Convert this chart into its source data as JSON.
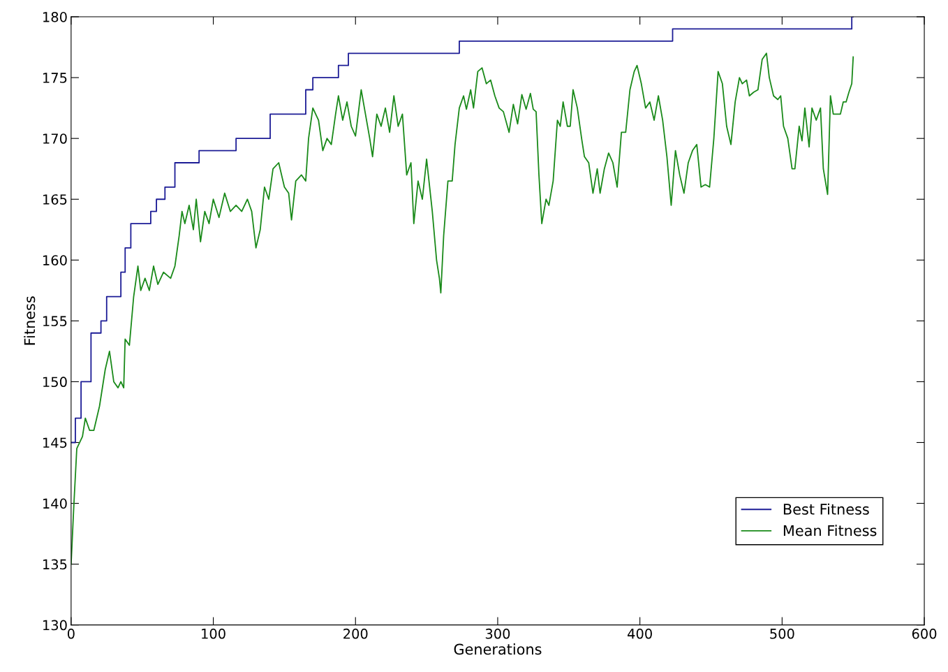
{
  "chart_data": {
    "type": "line",
    "xlabel": "Generations",
    "ylabel": "Fitness",
    "xlim": [
      0,
      600
    ],
    "xticks": [
      0,
      100,
      200,
      300,
      400,
      500,
      600
    ],
    "ylim": [
      130,
      180
    ],
    "yticks": [
      130,
      135,
      140,
      145,
      150,
      155,
      160,
      165,
      170,
      175,
      180
    ],
    "grid": false,
    "legend": "bottom right",
    "line_style": "solid",
    "marker": "none",
    "series": [
      {
        "name": "Best Fitness",
        "type": "step",
        "color": "#1c1c96",
        "x": [
          0,
          3,
          7,
          14,
          21,
          25,
          35,
          38,
          42,
          56,
          60,
          66,
          73,
          90,
          116,
          140,
          165,
          170,
          188,
          195,
          273,
          423,
          549,
          550
        ],
        "values": [
          145,
          147,
          150,
          154,
          155,
          157,
          159,
          161,
          163,
          164,
          165,
          166,
          168,
          169,
          170,
          172,
          174,
          175,
          176,
          177,
          178,
          179,
          180,
          180
        ]
      },
      {
        "name": "Mean Fitness",
        "color": "#1a8a1a",
        "x": [
          0,
          2,
          4,
          8,
          10,
          13,
          16,
          20,
          24,
          27,
          30,
          33,
          35,
          37,
          38,
          41,
          44,
          47,
          49,
          52,
          55,
          58,
          61,
          65,
          70,
          73,
          76,
          78,
          80,
          83,
          86,
          88,
          91,
          94,
          97,
          100,
          104,
          108,
          112,
          116,
          120,
          124,
          127,
          130,
          133,
          136,
          139,
          142,
          146,
          150,
          153,
          155,
          158,
          162,
          165,
          167,
          170,
          174,
          177,
          180,
          183,
          186,
          188,
          191,
          194,
          197,
          200,
          204,
          207,
          210,
          212,
          215,
          218,
          221,
          224,
          227,
          230,
          233,
          236,
          239,
          241,
          244,
          247,
          250,
          254,
          257,
          259,
          260,
          262,
          265,
          268,
          270,
          273,
          276,
          278,
          281,
          283,
          286,
          289,
          292,
          295,
          298,
          301,
          304,
          308,
          311,
          314,
          317,
          320,
          323,
          325,
          327,
          329,
          331,
          334,
          336,
          339,
          342,
          344,
          346,
          349,
          351,
          353,
          356,
          359,
          361,
          364,
          367,
          370,
          372,
          375,
          378,
          381,
          384,
          387,
          390,
          393,
          396,
          398,
          401,
          404,
          407,
          410,
          413,
          416,
          419,
          422,
          425,
          428,
          431,
          434,
          437,
          440,
          443,
          446,
          449,
          452,
          455,
          458,
          461,
          464,
          467,
          470,
          472,
          475,
          477,
          480,
          483,
          486,
          489,
          491,
          494,
          497,
          499,
          501,
          504,
          507,
          509,
          512,
          514,
          516,
          519,
          521,
          524,
          527,
          529,
          532,
          534,
          536,
          538,
          541,
          543,
          545,
          547,
          549,
          550
        ],
        "values": [
          135,
          140,
          144.5,
          145.5,
          147,
          146,
          146,
          148,
          151,
          152.5,
          150,
          149.5,
          150,
          149.5,
          153.5,
          153,
          157,
          159.5,
          157.5,
          158.5,
          157.5,
          159.5,
          158,
          159,
          158.5,
          159.5,
          162,
          164,
          163,
          164.5,
          162.5,
          165,
          161.5,
          164,
          163,
          165,
          163.5,
          165.5,
          164,
          164.5,
          164,
          165,
          164,
          161,
          162.5,
          166,
          165,
          167.5,
          168,
          166,
          165.5,
          163.3,
          166.5,
          167,
          166.5,
          170,
          172.5,
          171.5,
          169,
          170,
          169.5,
          172,
          173.5,
          171.5,
          173,
          171,
          170.2,
          174,
          172,
          170,
          168.5,
          172,
          171,
          172.5,
          170.5,
          173.5,
          171,
          172,
          167,
          168,
          163,
          166.5,
          165,
          168.3,
          164,
          160,
          158.5,
          157.3,
          162,
          166.5,
          166.5,
          169.5,
          172.5,
          173.5,
          172.4,
          174,
          172.5,
          175.5,
          175.8,
          174.5,
          174.8,
          173.5,
          172.5,
          172.2,
          170.5,
          172.8,
          171.2,
          173.6,
          172.4,
          173.7,
          172.4,
          172.2,
          167,
          163,
          165,
          164.5,
          166.5,
          171.5,
          171,
          173,
          171,
          171,
          174,
          172.5,
          170,
          168.5,
          168,
          165.5,
          167.5,
          165.5,
          167.5,
          168.8,
          168,
          166,
          170.5,
          170.5,
          174,
          175.5,
          176,
          174.5,
          172.5,
          173,
          171.5,
          173.5,
          171.5,
          168.5,
          164.5,
          169,
          167,
          165.5,
          168,
          169,
          169.5,
          166,
          166.2,
          166,
          170,
          175.5,
          174.5,
          171,
          169.5,
          173,
          175,
          174.5,
          174.8,
          173.5,
          173.8,
          174,
          176.5,
          177,
          175,
          173.5,
          173.2,
          173.5,
          171,
          170,
          167.5,
          167.5,
          171,
          169.8,
          172.5,
          169.3,
          172.5,
          171.5,
          172.5,
          167.5,
          165.4,
          173.5,
          172,
          172,
          172,
          173,
          173,
          173.8,
          174.5,
          176.7
        ]
      }
    ]
  }
}
